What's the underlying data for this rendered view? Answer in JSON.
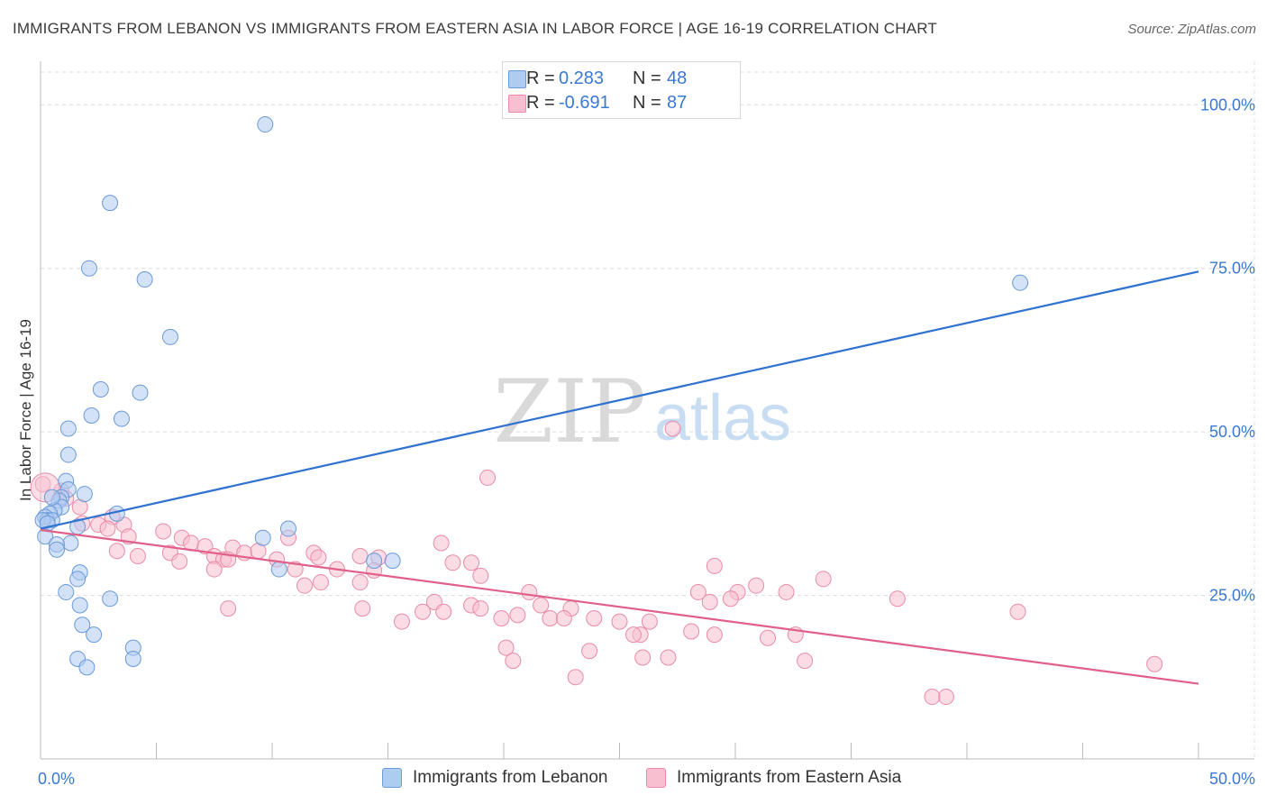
{
  "title": "IMMIGRANTS FROM LEBANON VS IMMIGRANTS FROM EASTERN ASIA IN LABOR FORCE | AGE 16-19 CORRELATION CHART",
  "source": "Source: ZipAtlas.com",
  "legend": {
    "series1": {
      "r_label": "R =",
      "r_value": "0.283",
      "n_label": "N =",
      "n_value": "48"
    },
    "series2": {
      "r_label": "R =",
      "r_value": "-0.691",
      "n_label": "N =",
      "n_value": "87"
    }
  },
  "bottom_legend": {
    "series1": "Immigrants from Lebanon",
    "series2": "Immigrants from Eastern Asia"
  },
  "watermark": {
    "zip": "ZIP",
    "atlas": "atlas"
  },
  "colors": {
    "blue_fill": "#aecbf0",
    "blue_stroke": "#6a9ad8",
    "blue_line": "#2f72d0",
    "pink_fill": "#f7bfd0",
    "pink_stroke": "#e98aa8",
    "pink_line": "#e0608a",
    "tick_text": "#3a78d4",
    "grid": "#dcdcdc"
  },
  "chart_data": {
    "type": "scatter",
    "xlabel": "",
    "ylabel": "In Labor Force | Age 16-19",
    "xlim": [
      0,
      50
    ],
    "ylim": [
      0,
      105
    ],
    "x_tick_labels": [
      {
        "v": 0,
        "t": "0.0%"
      },
      {
        "v": 50,
        "t": "50.0%"
      }
    ],
    "y_tick_labels": [
      {
        "v": 25,
        "t": "25.0%"
      },
      {
        "v": 50,
        "t": "50.0%"
      },
      {
        "v": 75,
        "t": "75.0%"
      },
      {
        "v": 100,
        "t": "100.0%"
      }
    ],
    "grid": true,
    "series": [
      {
        "name": "Immigrants from Lebanon",
        "color": "blue",
        "trend": [
          [
            0,
            35.2
          ],
          [
            50,
            74.5
          ]
        ],
        "points": [
          [
            9.7,
            97.0
          ],
          [
            3.0,
            85.0
          ],
          [
            2.1,
            75.0
          ],
          [
            4.5,
            73.3
          ],
          [
            5.6,
            64.5
          ],
          [
            2.6,
            56.5
          ],
          [
            4.3,
            56.0
          ],
          [
            2.2,
            52.5
          ],
          [
            3.5,
            52.0
          ],
          [
            1.2,
            50.5
          ],
          [
            1.2,
            46.5
          ],
          [
            1.1,
            42.5
          ],
          [
            1.2,
            41.2
          ],
          [
            0.9,
            40.0
          ],
          [
            1.9,
            40.5
          ],
          [
            0.8,
            39.5
          ],
          [
            0.9,
            38.5
          ],
          [
            0.6,
            38.0
          ],
          [
            0.4,
            37.5
          ],
          [
            0.2,
            37.0
          ],
          [
            0.3,
            36.5
          ],
          [
            0.5,
            36.5
          ],
          [
            0.1,
            36.5
          ],
          [
            0.3,
            36.0
          ],
          [
            3.3,
            37.5
          ],
          [
            1.6,
            35.5
          ],
          [
            10.7,
            35.2
          ],
          [
            0.2,
            34.0
          ],
          [
            9.6,
            33.8
          ],
          [
            1.3,
            33.0
          ],
          [
            0.7,
            32.8
          ],
          [
            0.7,
            32.0
          ],
          [
            14.4,
            30.3
          ],
          [
            15.2,
            30.3
          ],
          [
            10.3,
            29.0
          ],
          [
            1.7,
            28.5
          ],
          [
            1.6,
            27.5
          ],
          [
            1.1,
            25.5
          ],
          [
            3.0,
            24.5
          ],
          [
            1.7,
            23.5
          ],
          [
            1.8,
            20.5
          ],
          [
            2.3,
            19.0
          ],
          [
            4.0,
            17.0
          ],
          [
            1.6,
            15.3
          ],
          [
            4.0,
            15.3
          ],
          [
            2.0,
            14.0
          ],
          [
            42.3,
            72.8
          ],
          [
            0.5,
            40.0
          ]
        ]
      },
      {
        "name": "Immigrants from Eastern Asia",
        "color": "pink",
        "trend": [
          [
            0,
            35.0
          ],
          [
            50,
            11.5
          ]
        ],
        "points": [
          [
            0.1,
            42.0
          ],
          [
            0.9,
            41.0
          ],
          [
            1.1,
            39.8
          ],
          [
            1.7,
            38.5
          ],
          [
            1.8,
            36.0
          ],
          [
            2.5,
            35.8
          ],
          [
            3.1,
            37.0
          ],
          [
            3.6,
            35.8
          ],
          [
            2.9,
            35.2
          ],
          [
            5.3,
            34.8
          ],
          [
            3.8,
            34.0
          ],
          [
            6.1,
            33.8
          ],
          [
            6.5,
            33.0
          ],
          [
            10.7,
            33.8
          ],
          [
            7.1,
            32.5
          ],
          [
            8.3,
            32.3
          ],
          [
            3.3,
            31.8
          ],
          [
            5.6,
            31.5
          ],
          [
            4.2,
            31.0
          ],
          [
            7.5,
            31.0
          ],
          [
            8.8,
            31.5
          ],
          [
            9.4,
            31.8
          ],
          [
            11.8,
            31.5
          ],
          [
            13.8,
            31.0
          ],
          [
            17.3,
            33.0
          ],
          [
            6.0,
            30.2
          ],
          [
            7.9,
            30.5
          ],
          [
            8.1,
            30.5
          ],
          [
            10.2,
            30.5
          ],
          [
            12.0,
            30.8
          ],
          [
            14.6,
            30.8
          ],
          [
            18.6,
            30.0
          ],
          [
            17.8,
            30.0
          ],
          [
            7.5,
            29.0
          ],
          [
            11.0,
            29.0
          ],
          [
            12.8,
            29.0
          ],
          [
            14.4,
            28.8
          ],
          [
            19.0,
            28.0
          ],
          [
            19.3,
            43.0
          ],
          [
            27.3,
            50.5
          ],
          [
            13.8,
            27.0
          ],
          [
            12.1,
            27.0
          ],
          [
            11.4,
            26.5
          ],
          [
            29.1,
            29.5
          ],
          [
            28.4,
            25.5
          ],
          [
            30.1,
            25.5
          ],
          [
            30.9,
            26.5
          ],
          [
            32.2,
            25.5
          ],
          [
            33.8,
            27.5
          ],
          [
            17.0,
            24.0
          ],
          [
            21.1,
            25.5
          ],
          [
            8.1,
            23.0
          ],
          [
            13.9,
            23.0
          ],
          [
            15.6,
            21.0
          ],
          [
            16.5,
            22.5
          ],
          [
            17.4,
            22.5
          ],
          [
            18.6,
            23.5
          ],
          [
            19.0,
            23.0
          ],
          [
            21.6,
            23.5
          ],
          [
            22.9,
            23.0
          ],
          [
            19.9,
            21.5
          ],
          [
            20.6,
            22.0
          ],
          [
            22.0,
            21.5
          ],
          [
            22.6,
            21.5
          ],
          [
            23.9,
            21.5
          ],
          [
            25.0,
            21.0
          ],
          [
            26.3,
            21.0
          ],
          [
            28.9,
            24.0
          ],
          [
            29.8,
            24.5
          ],
          [
            37.0,
            24.5
          ],
          [
            42.2,
            22.5
          ],
          [
            28.1,
            19.5
          ],
          [
            29.1,
            19.0
          ],
          [
            25.9,
            19.0
          ],
          [
            25.6,
            19.0
          ],
          [
            31.4,
            18.5
          ],
          [
            32.6,
            19.0
          ],
          [
            20.1,
            17.0
          ],
          [
            23.7,
            16.5
          ],
          [
            27.1,
            15.5
          ],
          [
            26.0,
            15.5
          ],
          [
            20.4,
            15.0
          ],
          [
            23.1,
            12.5
          ],
          [
            33.0,
            15.0
          ],
          [
            39.1,
            9.5
          ],
          [
            38.5,
            9.5
          ],
          [
            48.1,
            14.5
          ]
        ]
      }
    ]
  }
}
